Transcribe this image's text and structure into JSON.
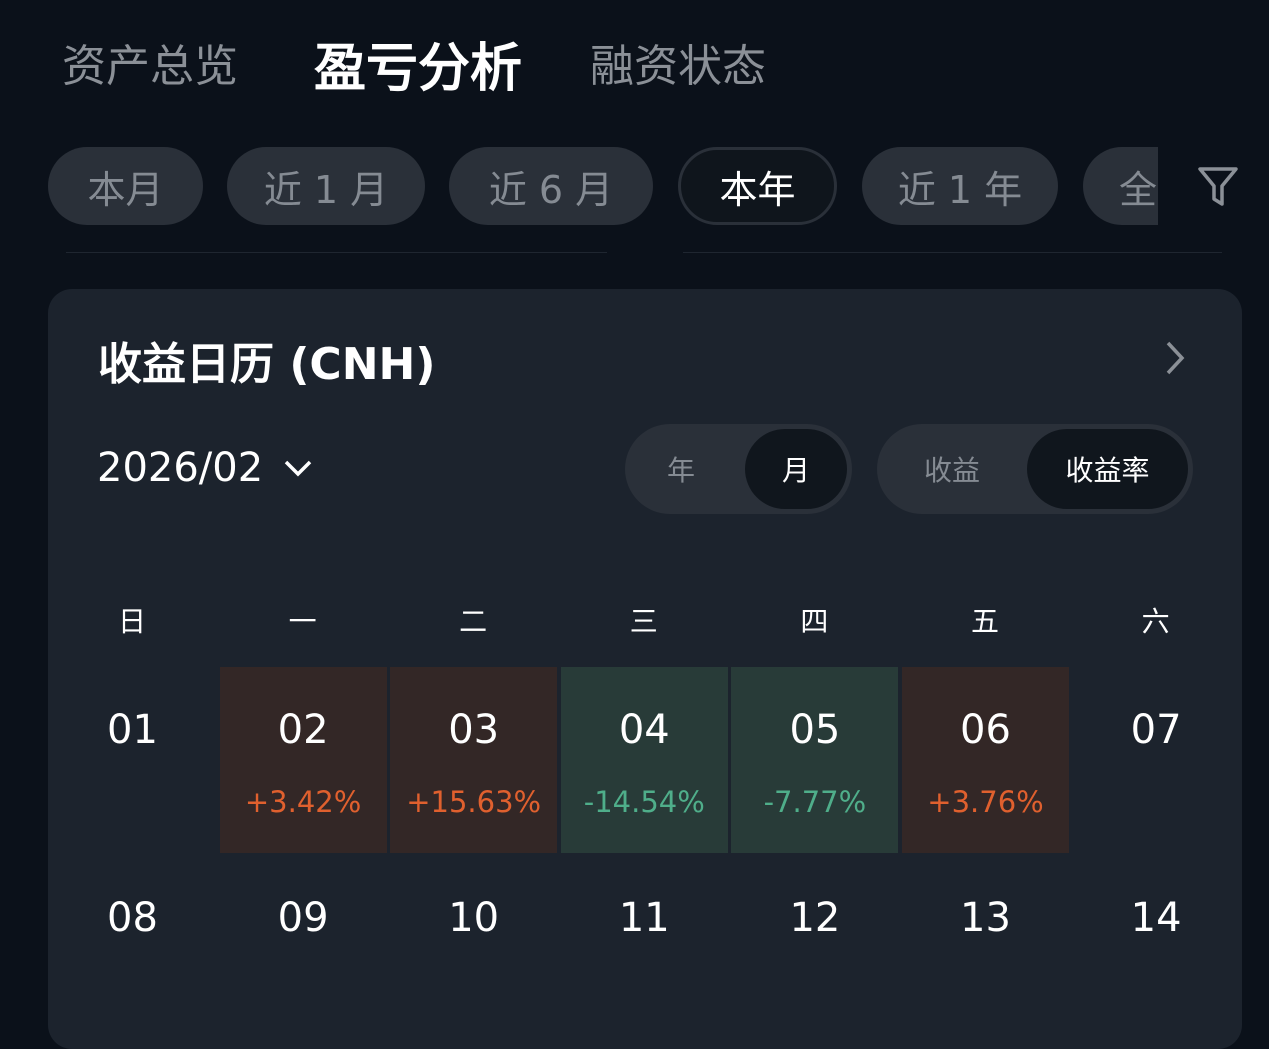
{
  "tabs": {
    "items": [
      "资产总览",
      "盈亏分析",
      "融资状态"
    ],
    "active": 1
  },
  "periods": {
    "items": [
      "本月",
      "近 1 月",
      "近 6 月",
      "本年",
      "近 1 年",
      "全"
    ],
    "active": 3
  },
  "calendar": {
    "title": "收益日历 (CNH)",
    "month": "2026/02",
    "scale_toggle": {
      "items": [
        "年",
        "月"
      ],
      "active": 1
    },
    "metric_toggle": {
      "items": [
        "收益",
        "收益率"
      ],
      "active": 1
    },
    "weekdays": [
      "日",
      "一",
      "二",
      "三",
      "四",
      "五",
      "六"
    ],
    "rows": [
      [
        {
          "day": "01"
        },
        {
          "day": "02",
          "rate": "+3.42%"
        },
        {
          "day": "03",
          "rate": "+15.63%"
        },
        {
          "day": "04",
          "rate": "-14.54%"
        },
        {
          "day": "05",
          "rate": "-7.77%"
        },
        {
          "day": "06",
          "rate": "+3.76%"
        },
        {
          "day": "07"
        }
      ],
      [
        {
          "day": "08"
        },
        {
          "day": "09"
        },
        {
          "day": "10"
        },
        {
          "day": "11"
        },
        {
          "day": "12"
        },
        {
          "day": "13"
        },
        {
          "day": "14"
        }
      ]
    ]
  }
}
